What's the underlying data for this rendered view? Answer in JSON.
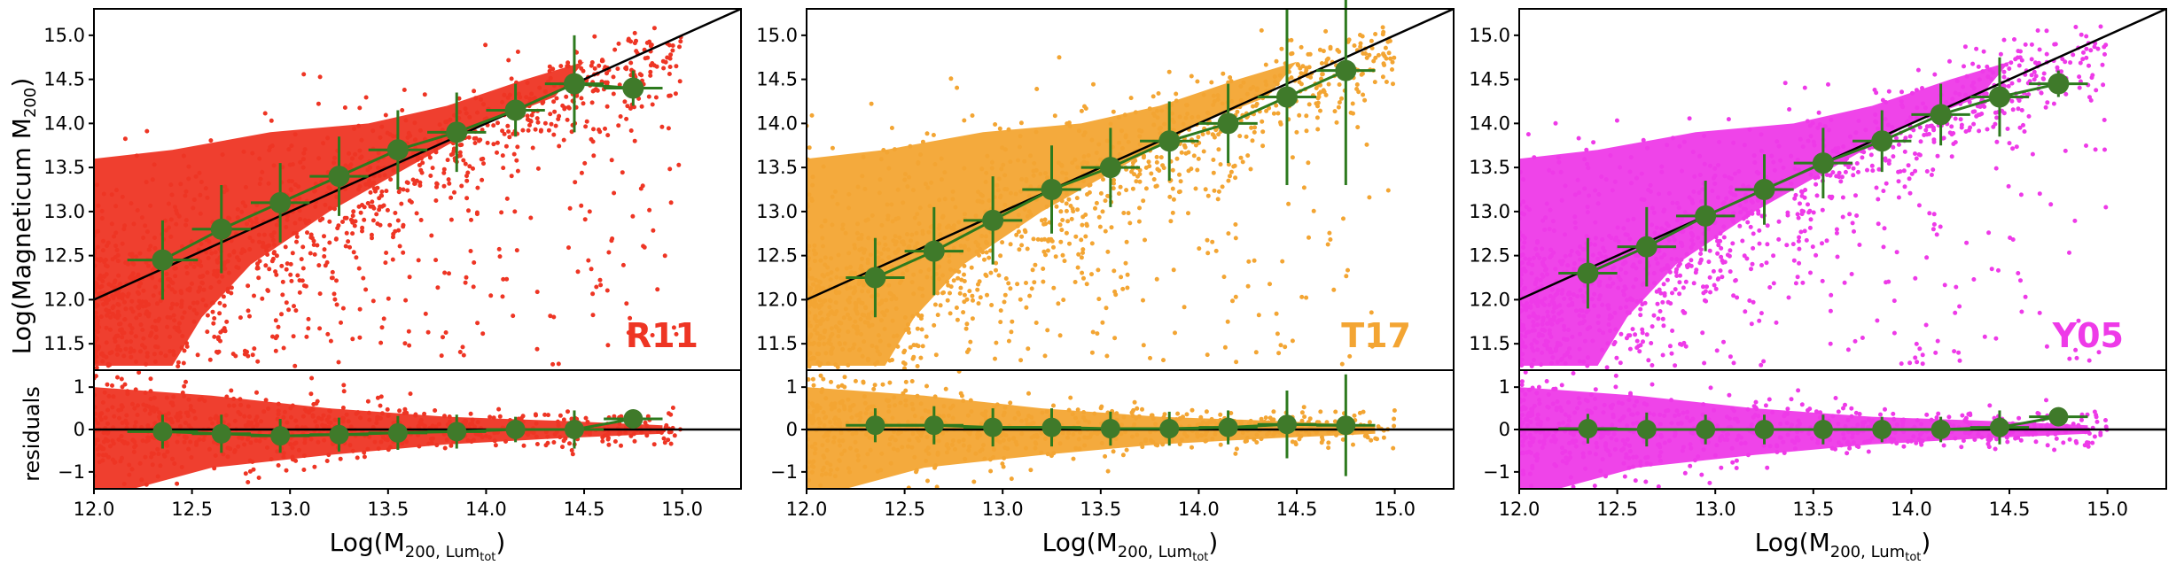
{
  "figure": {
    "ylabel_main": "Log(Magneticum M",
    "ylabel_main_sub": "200",
    "ylabel_main_end": ")",
    "ylabel_resid": "residuals",
    "xlabel": "Log(M",
    "xlabel_sub": "200, Lum",
    "xlabel_subsub": "tot",
    "xlabel_end": ")"
  },
  "chart_data": [
    {
      "type": "scatter",
      "label": "R11",
      "color": "#ee3524",
      "xlim": [
        12.0,
        15.3
      ],
      "ylim_main": [
        11.2,
        15.3
      ],
      "ylim_resid": [
        -1.4,
        1.4
      ],
      "xticks": [
        "12.0",
        "12.5",
        "13.0",
        "13.5",
        "14.0",
        "14.5",
        "15.0"
      ],
      "yticks_main": [
        "11.5",
        "12.0",
        "12.5",
        "13.0",
        "13.5",
        "14.0",
        "14.5",
        "15.0"
      ],
      "yticks_resid": [
        "−1",
        "0",
        "1"
      ],
      "one_to_one_line": true,
      "binned": {
        "x": [
          12.35,
          12.65,
          12.95,
          13.25,
          13.55,
          13.85,
          14.15,
          14.45,
          14.75
        ],
        "y": [
          12.45,
          12.8,
          13.1,
          13.4,
          13.7,
          13.9,
          14.15,
          14.45,
          14.4
        ],
        "yerr": [
          0.45,
          0.5,
          0.45,
          0.45,
          0.45,
          0.45,
          0.3,
          0.55,
          0.2
        ],
        "xerr": [
          0.18,
          0.15,
          0.15,
          0.15,
          0.15,
          0.15,
          0.15,
          0.15,
          0.15
        ],
        "resid": [
          -0.05,
          -0.1,
          -0.15,
          -0.12,
          -0.08,
          -0.05,
          0.0,
          0.0,
          0.25
        ],
        "resid_err": [
          0.4,
          0.45,
          0.4,
          0.4,
          0.4,
          0.4,
          0.3,
          0.45,
          0.2
        ]
      }
    },
    {
      "type": "scatter",
      "label": "T17",
      "color": "#f3a533",
      "xlim": [
        12.0,
        15.3
      ],
      "ylim_main": [
        11.2,
        15.3
      ],
      "ylim_resid": [
        -1.4,
        1.4
      ],
      "xticks": [
        "12.0",
        "12.5",
        "13.0",
        "13.5",
        "14.0",
        "14.5",
        "15.0"
      ],
      "yticks_main": [
        "11.5",
        "12.0",
        "12.5",
        "13.0",
        "13.5",
        "14.0",
        "14.5",
        "15.0"
      ],
      "yticks_resid": [
        "−1",
        "0",
        "1"
      ],
      "one_to_one_line": true,
      "binned": {
        "x": [
          12.35,
          12.65,
          12.95,
          13.25,
          13.55,
          13.85,
          14.15,
          14.45,
          14.75
        ],
        "y": [
          12.25,
          12.55,
          12.9,
          13.25,
          13.5,
          13.8,
          14.0,
          14.3,
          14.6
        ],
        "yerr": [
          0.45,
          0.5,
          0.5,
          0.5,
          0.45,
          0.45,
          0.45,
          1.0,
          1.3
        ],
        "xerr": [
          0.15,
          0.15,
          0.15,
          0.15,
          0.15,
          0.15,
          0.15,
          0.15,
          0.15
        ],
        "resid": [
          0.1,
          0.1,
          0.05,
          0.05,
          0.02,
          0.02,
          0.05,
          0.12,
          0.1
        ],
        "resid_err": [
          0.4,
          0.45,
          0.45,
          0.45,
          0.4,
          0.4,
          0.4,
          0.8,
          1.2
        ]
      }
    },
    {
      "type": "scatter",
      "label": "Y05",
      "color": "#ee3ae8",
      "xlim": [
        12.0,
        15.3
      ],
      "ylim_main": [
        11.2,
        15.3
      ],
      "ylim_resid": [
        -1.4,
        1.4
      ],
      "xticks": [
        "12.0",
        "12.5",
        "13.0",
        "13.5",
        "14.0",
        "14.5",
        "15.0"
      ],
      "yticks_main": [
        "11.5",
        "12.0",
        "12.5",
        "13.0",
        "13.5",
        "14.0",
        "14.5",
        "15.0"
      ],
      "yticks_resid": [
        "−1",
        "0",
        "1"
      ],
      "one_to_one_line": true,
      "binned": {
        "x": [
          12.35,
          12.65,
          12.95,
          13.25,
          13.55,
          13.85,
          14.15,
          14.45,
          14.75
        ],
        "y": [
          12.3,
          12.6,
          12.95,
          13.25,
          13.55,
          13.8,
          14.1,
          14.3,
          14.45
        ],
        "yerr": [
          0.4,
          0.45,
          0.4,
          0.4,
          0.4,
          0.35,
          0.35,
          0.45,
          0.15
        ],
        "xerr": [
          0.15,
          0.15,
          0.15,
          0.15,
          0.15,
          0.15,
          0.15,
          0.15,
          0.15
        ],
        "resid": [
          0.02,
          0.0,
          0.0,
          0.0,
          0.0,
          0.0,
          0.0,
          0.05,
          0.3
        ],
        "resid_err": [
          0.35,
          0.4,
          0.35,
          0.35,
          0.35,
          0.3,
          0.3,
          0.4,
          0.15
        ]
      }
    }
  ]
}
